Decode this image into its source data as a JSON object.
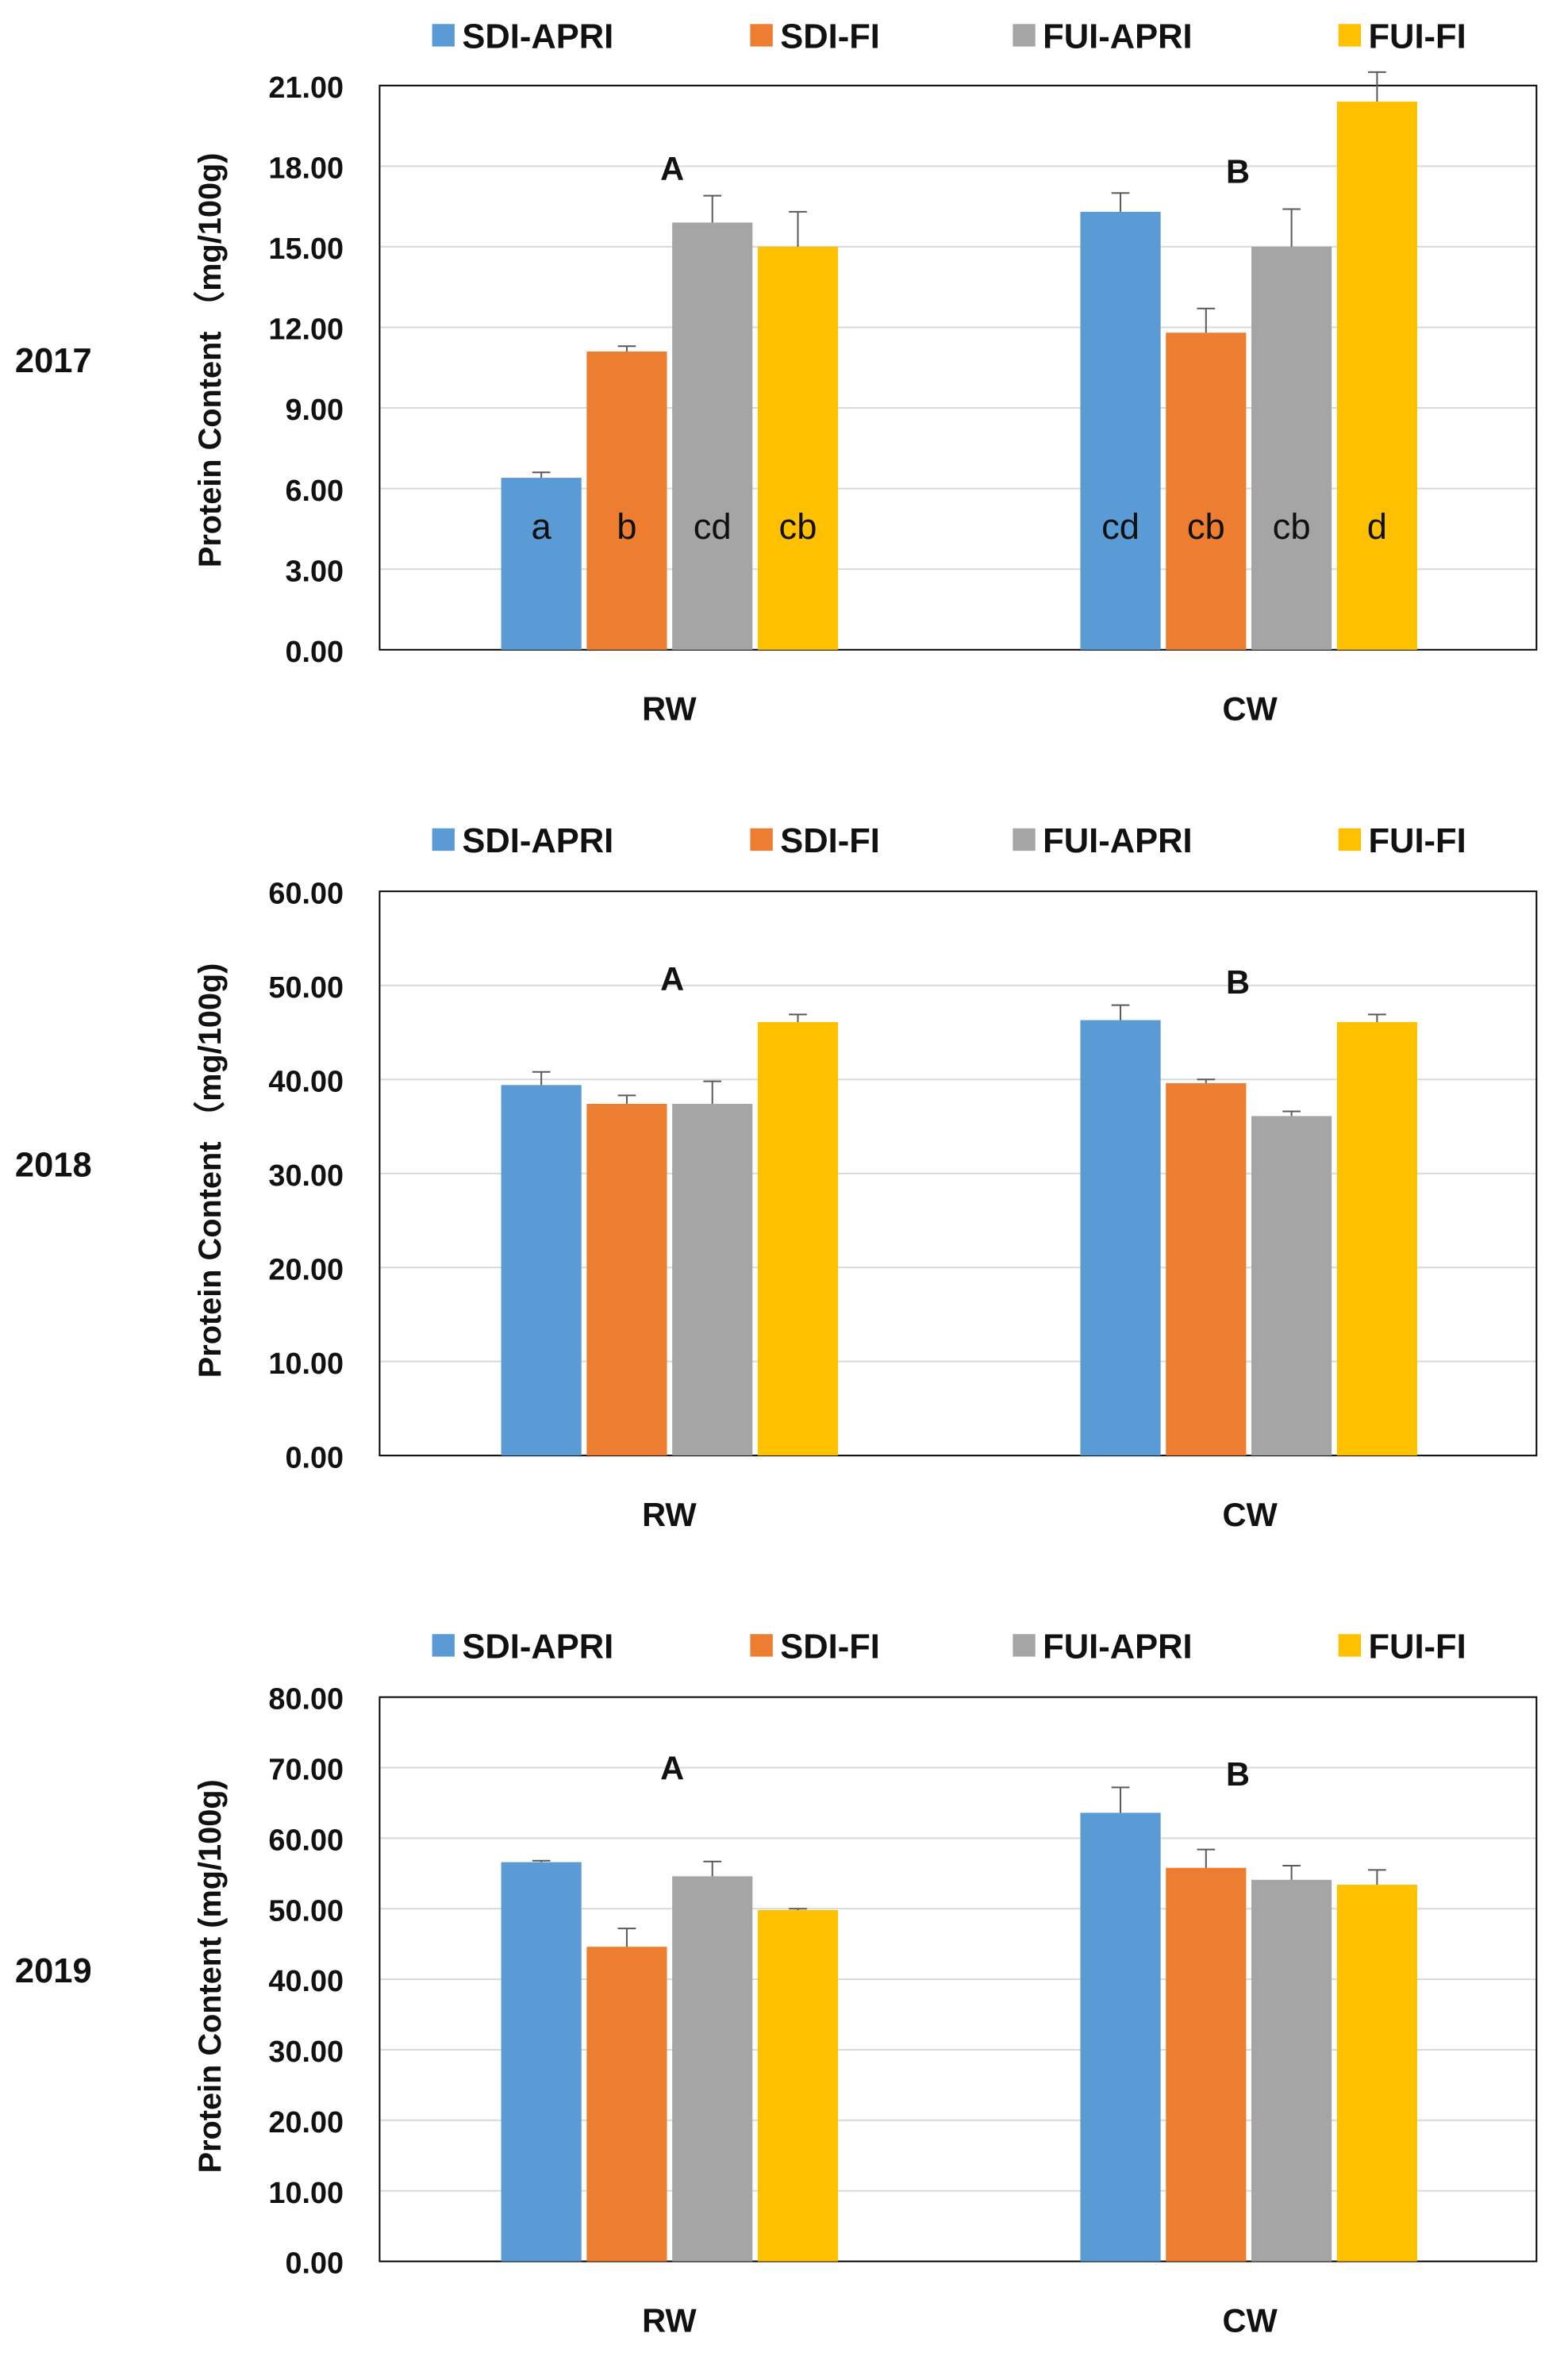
{
  "legend": [
    {
      "name": "SDI-APRI",
      "color": "#5B9BD5"
    },
    {
      "name": "SDI-FI",
      "color": "#ED7D31"
    },
    {
      "name": "FUI-APRI",
      "color": "#A5A5A5"
    },
    {
      "name": "FUI-FI",
      "color": "#FFC000"
    }
  ],
  "chart_data": [
    {
      "type": "bar",
      "year_label": "2017",
      "ylabel": "Protein Content （mg/100g)",
      "categories": [
        "RW",
        "CW"
      ],
      "group_letters": [
        "A",
        "B"
      ],
      "ylim": [
        0,
        21
      ],
      "yticks": [
        "0.00",
        "3.00",
        "6.00",
        "9.00",
        "12.00",
        "15.00",
        "18.00",
        "21.00"
      ],
      "grid": true,
      "series": [
        {
          "name": "SDI-APRI",
          "values": [
            6.4,
            16.3
          ],
          "errors": [
            0.2,
            0.7
          ],
          "letters": [
            "a",
            "cd"
          ]
        },
        {
          "name": "SDI-FI",
          "values": [
            11.1,
            11.8
          ],
          "errors": [
            0.2,
            0.9
          ],
          "letters": [
            "b",
            "cb"
          ]
        },
        {
          "name": "FUI-APRI",
          "values": [
            15.9,
            15.0
          ],
          "errors": [
            1.0,
            1.4
          ],
          "letters": [
            "cd",
            "cb"
          ]
        },
        {
          "name": "FUI-FI",
          "values": [
            15.0,
            20.4
          ],
          "errors": [
            1.3,
            1.1
          ],
          "letters": [
            "cb",
            "d"
          ]
        }
      ]
    },
    {
      "type": "bar",
      "year_label": "2018",
      "ylabel": "Protein Content （mg/100g)",
      "categories": [
        "RW",
        "CW"
      ],
      "group_letters": [
        "A",
        "B"
      ],
      "ylim": [
        0,
        60
      ],
      "yticks": [
        "0.00",
        "10.00",
        "20.00",
        "30.00",
        "40.00",
        "50.00",
        "60.00"
      ],
      "grid": true,
      "series": [
        {
          "name": "SDI-APRI",
          "values": [
            39.4,
            46.3
          ],
          "errors": [
            1.4,
            1.6
          ],
          "letters": [
            "",
            ""
          ]
        },
        {
          "name": "SDI-FI",
          "values": [
            37.4,
            39.6
          ],
          "errors": [
            0.9,
            0.4
          ],
          "letters": [
            "",
            ""
          ]
        },
        {
          "name": "FUI-APRI",
          "values": [
            37.4,
            36.1
          ],
          "errors": [
            2.4,
            0.5
          ],
          "letters": [
            "",
            ""
          ]
        },
        {
          "name": "FUI-FI",
          "values": [
            46.1,
            46.1
          ],
          "errors": [
            0.8,
            0.8
          ],
          "letters": [
            "",
            ""
          ]
        }
      ]
    },
    {
      "type": "bar",
      "year_label": "2019",
      "ylabel": "Protein Content (mg/100g)",
      "categories": [
        "RW",
        "CW"
      ],
      "group_letters": [
        "A",
        "B"
      ],
      "ylim": [
        0,
        80
      ],
      "yticks": [
        "0.00",
        "10.00",
        "20.00",
        "30.00",
        "40.00",
        "50.00",
        "60.00",
        "70.00",
        "80.00"
      ],
      "grid": true,
      "series": [
        {
          "name": "SDI-APRI",
          "values": [
            56.6,
            63.6
          ],
          "errors": [
            0.2,
            3.6
          ],
          "letters": [
            "",
            ""
          ]
        },
        {
          "name": "SDI-FI",
          "values": [
            44.6,
            55.8
          ],
          "errors": [
            2.6,
            2.6
          ],
          "letters": [
            "",
            ""
          ]
        },
        {
          "name": "FUI-APRI",
          "values": [
            54.6,
            54.1
          ],
          "errors": [
            2.1,
            2.0
          ],
          "letters": [
            "",
            ""
          ]
        },
        {
          "name": "FUI-FI",
          "values": [
            49.8,
            53.4
          ],
          "errors": [
            0.2,
            2.1
          ],
          "letters": [
            "",
            ""
          ]
        }
      ]
    }
  ]
}
